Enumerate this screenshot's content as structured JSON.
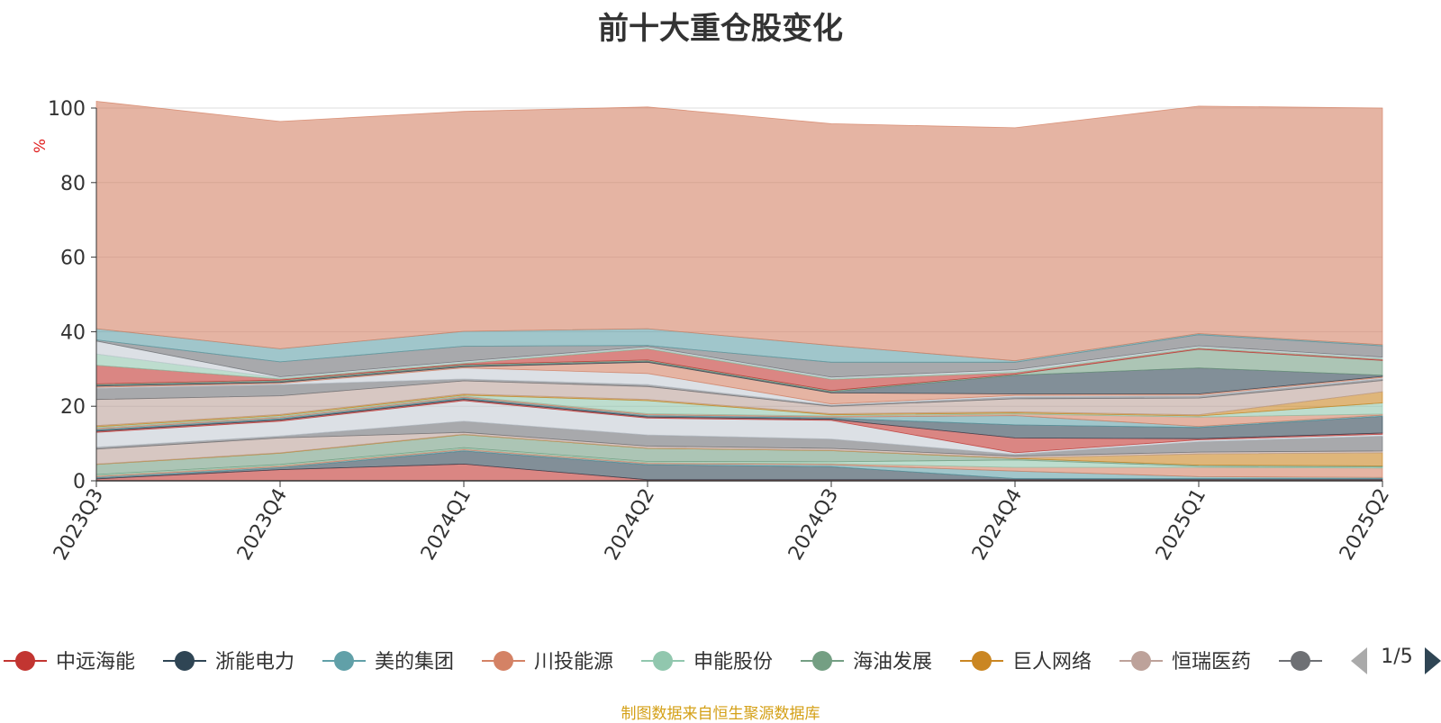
{
  "title": "前十大重仓股变化",
  "source_note": "制图数据来自恒生聚源数据库",
  "pager": {
    "text": "1/5"
  },
  "legend": {
    "items": [
      {
        "name": "中远海能",
        "color": "#c23531"
      },
      {
        "name": "浙能电力",
        "color": "#2f4554"
      },
      {
        "name": "美的集团",
        "color": "#61a0a8"
      },
      {
        "name": "川投能源",
        "color": "#d48265"
      },
      {
        "name": "申能股份",
        "color": "#91c7ae"
      },
      {
        "name": "海油发展",
        "color": "#749f83"
      },
      {
        "name": "巨人网络",
        "color": "#ca8622"
      },
      {
        "name": "恒瑞医药",
        "color": "#bda29a"
      },
      {
        "name": "",
        "color": "#6e7074"
      }
    ]
  },
  "chart_data": {
    "type": "area",
    "stacked": true,
    "title": "前十大重仓股变化",
    "ylabel": "%",
    "xlabel": "",
    "ylim": [
      0,
      100
    ],
    "yticks": [
      0,
      20,
      40,
      60,
      80,
      100
    ],
    "categories": [
      "2023Q3",
      "2023Q4",
      "2024Q1",
      "2024Q2",
      "2024Q3",
      "2024Q4",
      "2025Q1",
      "2025Q2"
    ],
    "series": [
      {
        "name": "中远海能",
        "color": "#c23531",
        "values": [
          0.5,
          3.0,
          4.5,
          0.3,
          0.3,
          0.3,
          0.3,
          0.3
        ]
      },
      {
        "name": "浙能电力",
        "color": "#2f4554",
        "values": [
          0.3,
          0.5,
          3.5,
          4.0,
          3.5,
          0.3,
          0.3,
          0.3
        ]
      },
      {
        "name": "美的集团",
        "color": "#61a0a8",
        "values": [
          0.3,
          0.3,
          0.3,
          0.3,
          0.5,
          2.0,
          0.5,
          0.3
        ]
      },
      {
        "name": "川投能源",
        "color": "#d48265",
        "values": [
          0.3,
          0.3,
          0.3,
          0.3,
          0.3,
          1.0,
          2.5,
          2.5
        ]
      },
      {
        "name": "申能股份",
        "color": "#91c7ae",
        "values": [
          0.3,
          0.3,
          0.3,
          0.3,
          0.5,
          2.0,
          0.3,
          0.3
        ]
      },
      {
        "name": "海油发展",
        "color": "#749f83",
        "values": [
          2.7,
          3.0,
          3.5,
          3.5,
          3.0,
          0.4,
          0.3,
          0.3
        ]
      },
      {
        "name": "巨人网络",
        "color": "#ca8622",
        "values": [
          0.1,
          0.1,
          0.1,
          0.1,
          0.1,
          0.1,
          3.0,
          3.5
        ]
      },
      {
        "name": "恒瑞医药",
        "color": "#bda29a",
        "values": [
          4.0,
          4.0,
          0.5,
          0.5,
          0.5,
          0.5,
          0.5,
          0.5
        ]
      },
      {
        "name": "",
        "color": "#6e7074",
        "values": [
          0.5,
          0.5,
          3.0,
          3.0,
          2.5,
          0.5,
          2.8,
          4.0
        ]
      },
      {
        "name": "",
        "color": "#c4ccd3",
        "values": [
          4.0,
          4.0,
          5.5,
          4.5,
          5.0,
          0.4,
          0.5,
          0.5
        ]
      },
      {
        "name": "",
        "color": "#c23531",
        "values": [
          0.3,
          0.3,
          0.3,
          0.3,
          0.3,
          4.0,
          0.3,
          0.3
        ]
      },
      {
        "name": "",
        "color": "#2f4554",
        "values": [
          0.3,
          0.3,
          0.3,
          0.3,
          0.3,
          3.5,
          3.0,
          4.5
        ]
      },
      {
        "name": "",
        "color": "#61a0a8",
        "values": [
          0.3,
          0.3,
          0.3,
          0.3,
          0.3,
          2.5,
          0.3,
          0.3
        ]
      },
      {
        "name": "",
        "color": "#d48265",
        "values": [
          0.3,
          0.3,
          0.3,
          0.3,
          0.3,
          0.4,
          2.5,
          0.3
        ]
      },
      {
        "name": "",
        "color": "#91c7ae",
        "values": [
          0.3,
          0.3,
          0.3,
          3.5,
          0.3,
          0.3,
          0.3,
          3.0
        ]
      },
      {
        "name": "",
        "color": "#ca8622",
        "values": [
          0.3,
          0.3,
          0.3,
          0.3,
          0.3,
          0.3,
          0.3,
          3.0
        ]
      },
      {
        "name": "",
        "color": "#bda29a",
        "values": [
          7.0,
          5.0,
          3.5,
          3.5,
          2.0,
          3.5,
          4.5,
          3.0
        ]
      },
      {
        "name": "",
        "color": "#6e7074",
        "values": [
          3.0,
          3.0,
          0.5,
          0.5,
          0.3,
          0.5,
          0.5,
          0.5
        ]
      },
      {
        "name": "",
        "color": "#c4ccd3",
        "values": [
          0.3,
          0.3,
          3.0,
          3.0,
          0.3,
          0.4,
          0.3,
          0.3
        ]
      },
      {
        "name": "",
        "color": "#d48265",
        "values": [
          0.3,
          0.3,
          0.3,
          3.0,
          3.0,
          0.4,
          0.3,
          0.3
        ]
      },
      {
        "name": "",
        "color": "#2f4554",
        "values": [
          0.3,
          0.3,
          0.3,
          0.3,
          0.3,
          5.0,
          7.0,
          0.3
        ]
      },
      {
        "name": "",
        "color": "#749f83",
        "values": [
          0.3,
          0.3,
          0.3,
          0.3,
          0.3,
          0.3,
          5.0,
          4.0
        ]
      },
      {
        "name": "",
        "color": "#c23531",
        "values": [
          5.0,
          0.3,
          0.3,
          3.0,
          3.0,
          0.4,
          0.3,
          0.3
        ]
      },
      {
        "name": "",
        "color": "#91c7ae",
        "values": [
          3.0,
          0.3,
          0.3,
          0.3,
          0.3,
          0.4,
          0.3,
          0.3
        ]
      },
      {
        "name": "",
        "color": "#c4ccd3",
        "values": [
          3.5,
          0.3,
          0.3,
          0.3,
          0.3,
          0.4,
          0.3,
          0.3
        ]
      },
      {
        "name": "",
        "color": "#6e7074",
        "values": [
          0.3,
          4.0,
          4.0,
          0.3,
          4.0,
          2.0,
          3.0,
          3.0
        ]
      },
      {
        "name": "",
        "color": "#61a0a8",
        "values": [
          3.0,
          3.5,
          4.0,
          4.5,
          4.5,
          0.4,
          0.3,
          0.3
        ]
      },
      {
        "name": "",
        "color": "#d48265",
        "values": [
          61.0,
          61.0,
          59.0,
          59.5,
          59.5,
          62.5,
          61.0,
          63.5
        ]
      }
    ]
  }
}
